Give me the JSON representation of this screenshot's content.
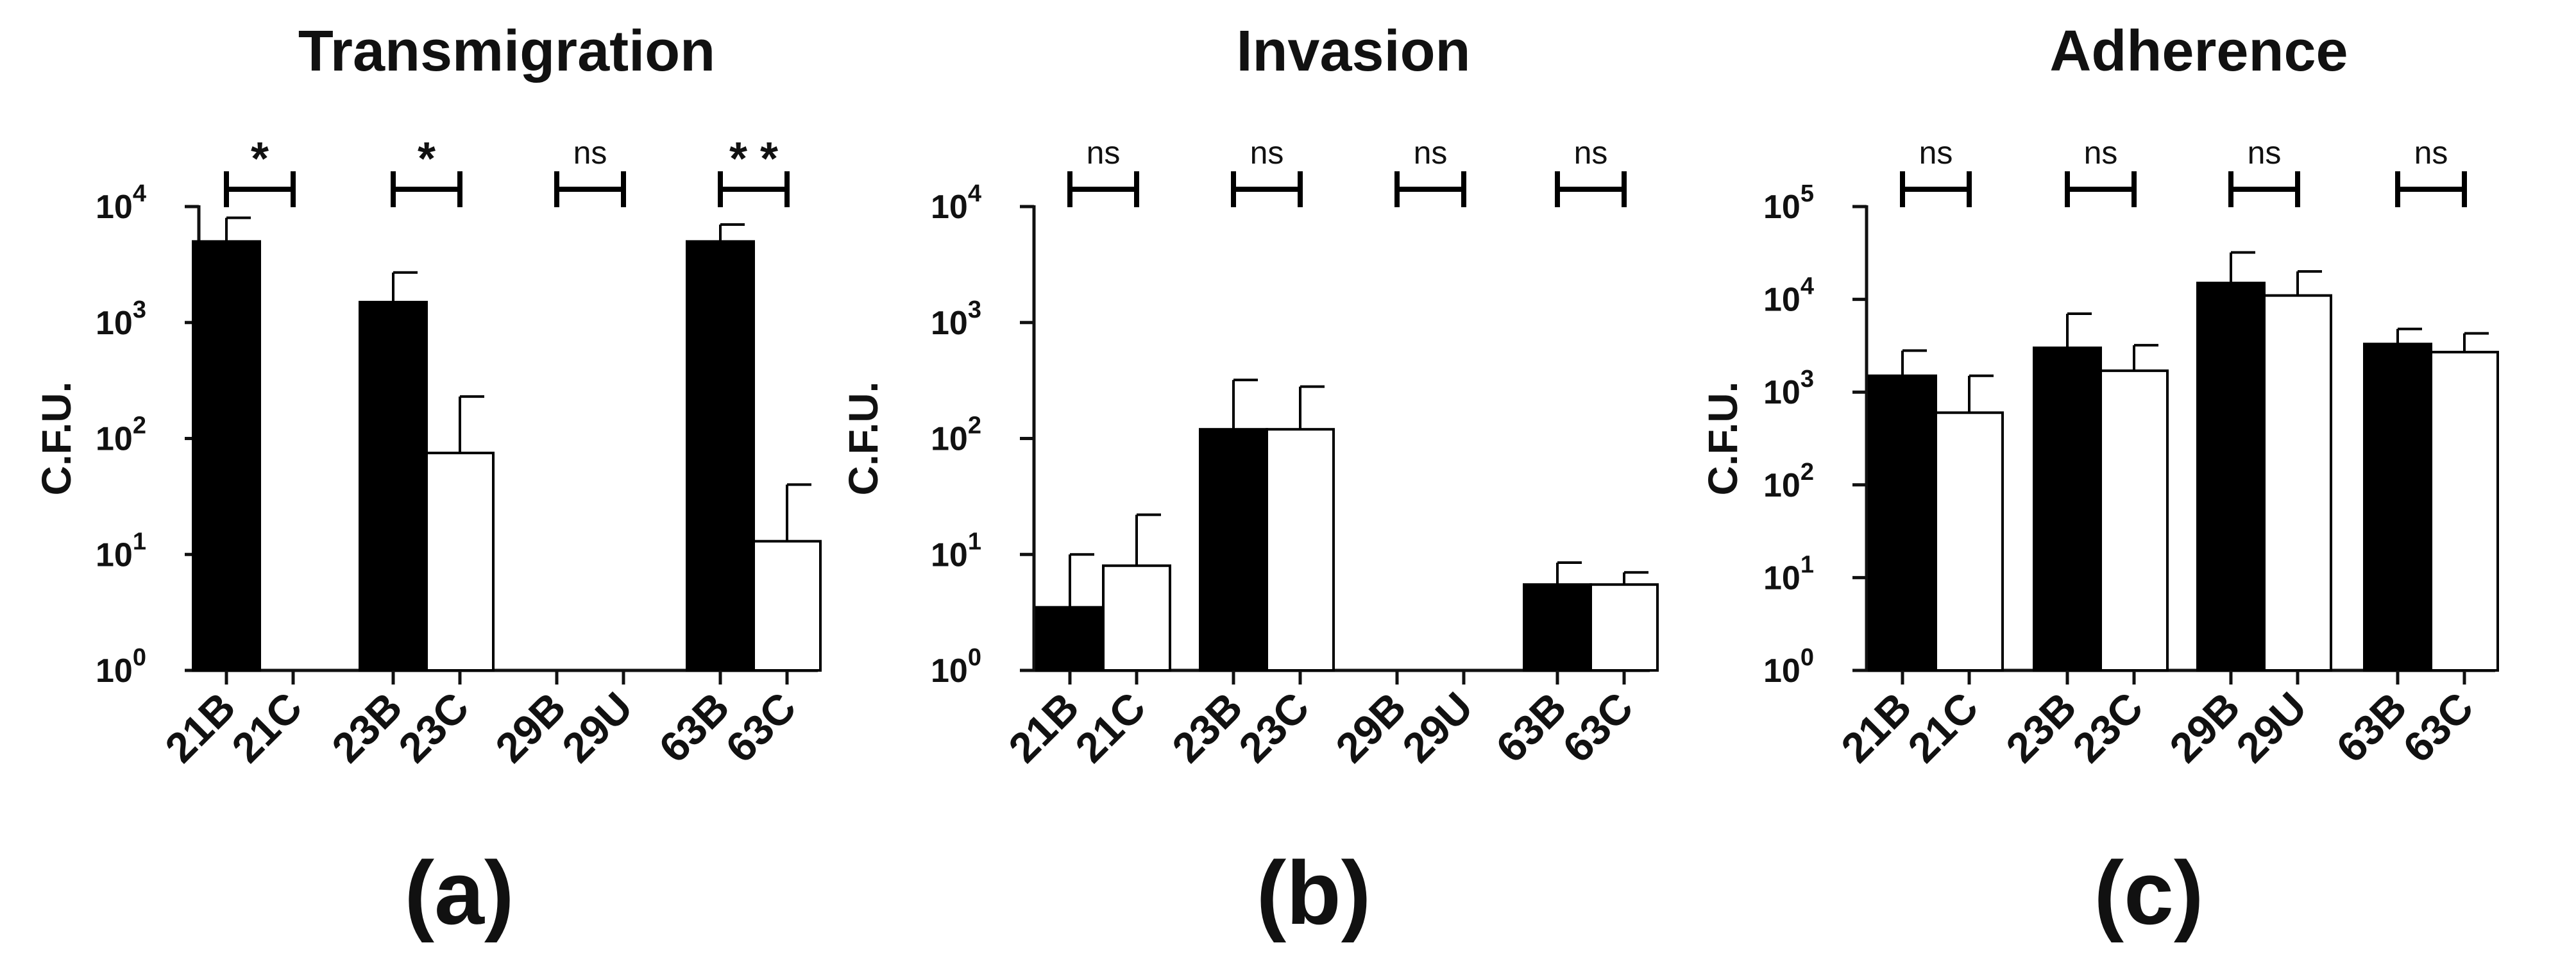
{
  "chart_data": [
    {
      "type": "bar",
      "title": "Transmigration",
      "panel_label": "(a)",
      "ylabel": "C.F.U.",
      "yscale": "log",
      "ylim": [
        1,
        10000
      ],
      "yticks": [
        {
          "value": 1,
          "base": "10",
          "exp": "0"
        },
        {
          "value": 10,
          "base": "10",
          "exp": "1"
        },
        {
          "value": 100,
          "base": "10",
          "exp": "2"
        },
        {
          "value": 1000,
          "base": "10",
          "exp": "3"
        },
        {
          "value": 10000,
          "base": "10",
          "exp": "4"
        }
      ],
      "groups": [
        {
          "bars": [
            {
              "label": "21B",
              "value": 5000,
              "error": 8000,
              "fill": "black"
            },
            {
              "label": "21C",
              "value": 1,
              "error": null,
              "fill": "white"
            }
          ],
          "significance": "*"
        },
        {
          "bars": [
            {
              "label": "23B",
              "value": 1500,
              "error": 2700,
              "fill": "black"
            },
            {
              "label": "23C",
              "value": 75,
              "error": 230,
              "fill": "white"
            }
          ],
          "significance": "*"
        },
        {
          "bars": [
            {
              "label": "29B",
              "value": 1,
              "error": null,
              "fill": "black"
            },
            {
              "label": "29U",
              "value": 1,
              "error": null,
              "fill": "white"
            }
          ],
          "significance": "ns"
        },
        {
          "bars": [
            {
              "label": "63B",
              "value": 5000,
              "error": 7000,
              "fill": "black"
            },
            {
              "label": "63C",
              "value": 13,
              "error": 40,
              "fill": "white"
            }
          ],
          "significance": "* *"
        }
      ]
    },
    {
      "type": "bar",
      "title": "Invasion",
      "panel_label": "(b)",
      "ylabel": "C.F.U.",
      "yscale": "log",
      "ylim": [
        1,
        10000
      ],
      "yticks": [
        {
          "value": 1,
          "base": "10",
          "exp": "0"
        },
        {
          "value": 10,
          "base": "10",
          "exp": "1"
        },
        {
          "value": 100,
          "base": "10",
          "exp": "2"
        },
        {
          "value": 1000,
          "base": "10",
          "exp": "3"
        },
        {
          "value": 10000,
          "base": "10",
          "exp": "4"
        }
      ],
      "groups": [
        {
          "bars": [
            {
              "label": "21B",
              "value": 3.5,
              "error": 10,
              "fill": "black"
            },
            {
              "label": "21C",
              "value": 8,
              "error": 22,
              "fill": "white"
            }
          ],
          "significance": "ns"
        },
        {
          "bars": [
            {
              "label": "23B",
              "value": 120,
              "error": 320,
              "fill": "black"
            },
            {
              "label": "23C",
              "value": 120,
              "error": 280,
              "fill": "white"
            }
          ],
          "significance": "ns"
        },
        {
          "bars": [
            {
              "label": "29B",
              "value": 1,
              "error": null,
              "fill": "black"
            },
            {
              "label": "29U",
              "value": 1,
              "error": null,
              "fill": "white"
            }
          ],
          "significance": "ns"
        },
        {
          "bars": [
            {
              "label": "63B",
              "value": 5.5,
              "error": 8.5,
              "fill": "black"
            },
            {
              "label": "63C",
              "value": 5.5,
              "error": 7,
              "fill": "white"
            }
          ],
          "significance": "ns"
        }
      ]
    },
    {
      "type": "bar",
      "title": "Adherence",
      "panel_label": "(c)",
      "ylabel": "C.F.U.",
      "yscale": "log",
      "ylim": [
        1,
        100000
      ],
      "yticks": [
        {
          "value": 1,
          "base": "10",
          "exp": "0"
        },
        {
          "value": 10,
          "base": "10",
          "exp": "1"
        },
        {
          "value": 100,
          "base": "10",
          "exp": "2"
        },
        {
          "value": 1000,
          "base": "10",
          "exp": "3"
        },
        {
          "value": 10000,
          "base": "10",
          "exp": "4"
        },
        {
          "value": 100000,
          "base": "10",
          "exp": "5"
        }
      ],
      "groups": [
        {
          "bars": [
            {
              "label": "21B",
              "value": 1500,
              "error": 2800,
              "fill": "black"
            },
            {
              "label": "21C",
              "value": 600,
              "error": 1500,
              "fill": "white"
            }
          ],
          "significance": "ns"
        },
        {
          "bars": [
            {
              "label": "23B",
              "value": 3000,
              "error": 7000,
              "fill": "black"
            },
            {
              "label": "23C",
              "value": 1700,
              "error": 3200,
              "fill": "white"
            }
          ],
          "significance": "ns"
        },
        {
          "bars": [
            {
              "label": "29B",
              "value": 15000,
              "error": 32000,
              "fill": "black"
            },
            {
              "label": "29U",
              "value": 11000,
              "error": 20000,
              "fill": "white"
            }
          ],
          "significance": "ns"
        },
        {
          "bars": [
            {
              "label": "63B",
              "value": 3300,
              "error": 4800,
              "fill": "black"
            },
            {
              "label": "63C",
              "value": 2700,
              "error": 4300,
              "fill": "white"
            }
          ],
          "significance": "ns"
        }
      ]
    }
  ]
}
